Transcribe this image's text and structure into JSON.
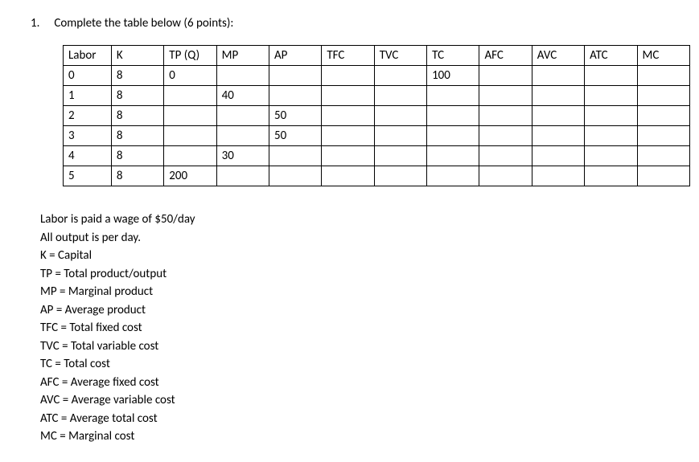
{
  "question": {
    "number": "1.",
    "text": "Complete the table below (6 points):"
  },
  "table": {
    "headers": [
      "Labor",
      "K",
      "TP (Q)",
      "MP",
      "AP",
      "TFC",
      "TVC",
      "TC",
      "AFC",
      "AVC",
      "ATC",
      "MC"
    ],
    "rows": [
      [
        "0",
        "8",
        "0",
        "",
        "",
        "",
        "",
        "100",
        "",
        "",
        "",
        ""
      ],
      [
        "1",
        "8",
        "",
        "40",
        "",
        "",
        "",
        "",
        "",
        "",
        "",
        ""
      ],
      [
        "2",
        "8",
        "",
        "",
        "50",
        "",
        "",
        "",
        "",
        "",
        "",
        ""
      ],
      [
        "3",
        "8",
        "",
        "",
        "50",
        "",
        "",
        "",
        "",
        "",
        "",
        ""
      ],
      [
        "4",
        "8",
        "",
        "30",
        "",
        "",
        "",
        "",
        "",
        "",
        "",
        ""
      ],
      [
        "5",
        "8",
        "200",
        "",
        "",
        "",
        "",
        "",
        "",
        "",
        "",
        ""
      ]
    ],
    "col_classes": [
      "col-labor",
      "col-k",
      "col-tp",
      "col-mp",
      "col-ap",
      "col-tfc",
      "col-tvc",
      "col-tc",
      "col-afc",
      "col-avc",
      "col-atc",
      "col-mc"
    ]
  },
  "notes": [
    "Labor is paid a wage of $50/day",
    "All output is per day.",
    "K = Capital",
    "TP = Total product/output",
    "MP = Marginal product",
    "AP = Average product",
    "TFC = Total fixed cost",
    "TVC = Total variable cost",
    "TC = Total cost",
    "AFC = Average fixed cost",
    "AVC = Average variable cost",
    "ATC = Average total cost",
    "MC = Marginal cost"
  ]
}
